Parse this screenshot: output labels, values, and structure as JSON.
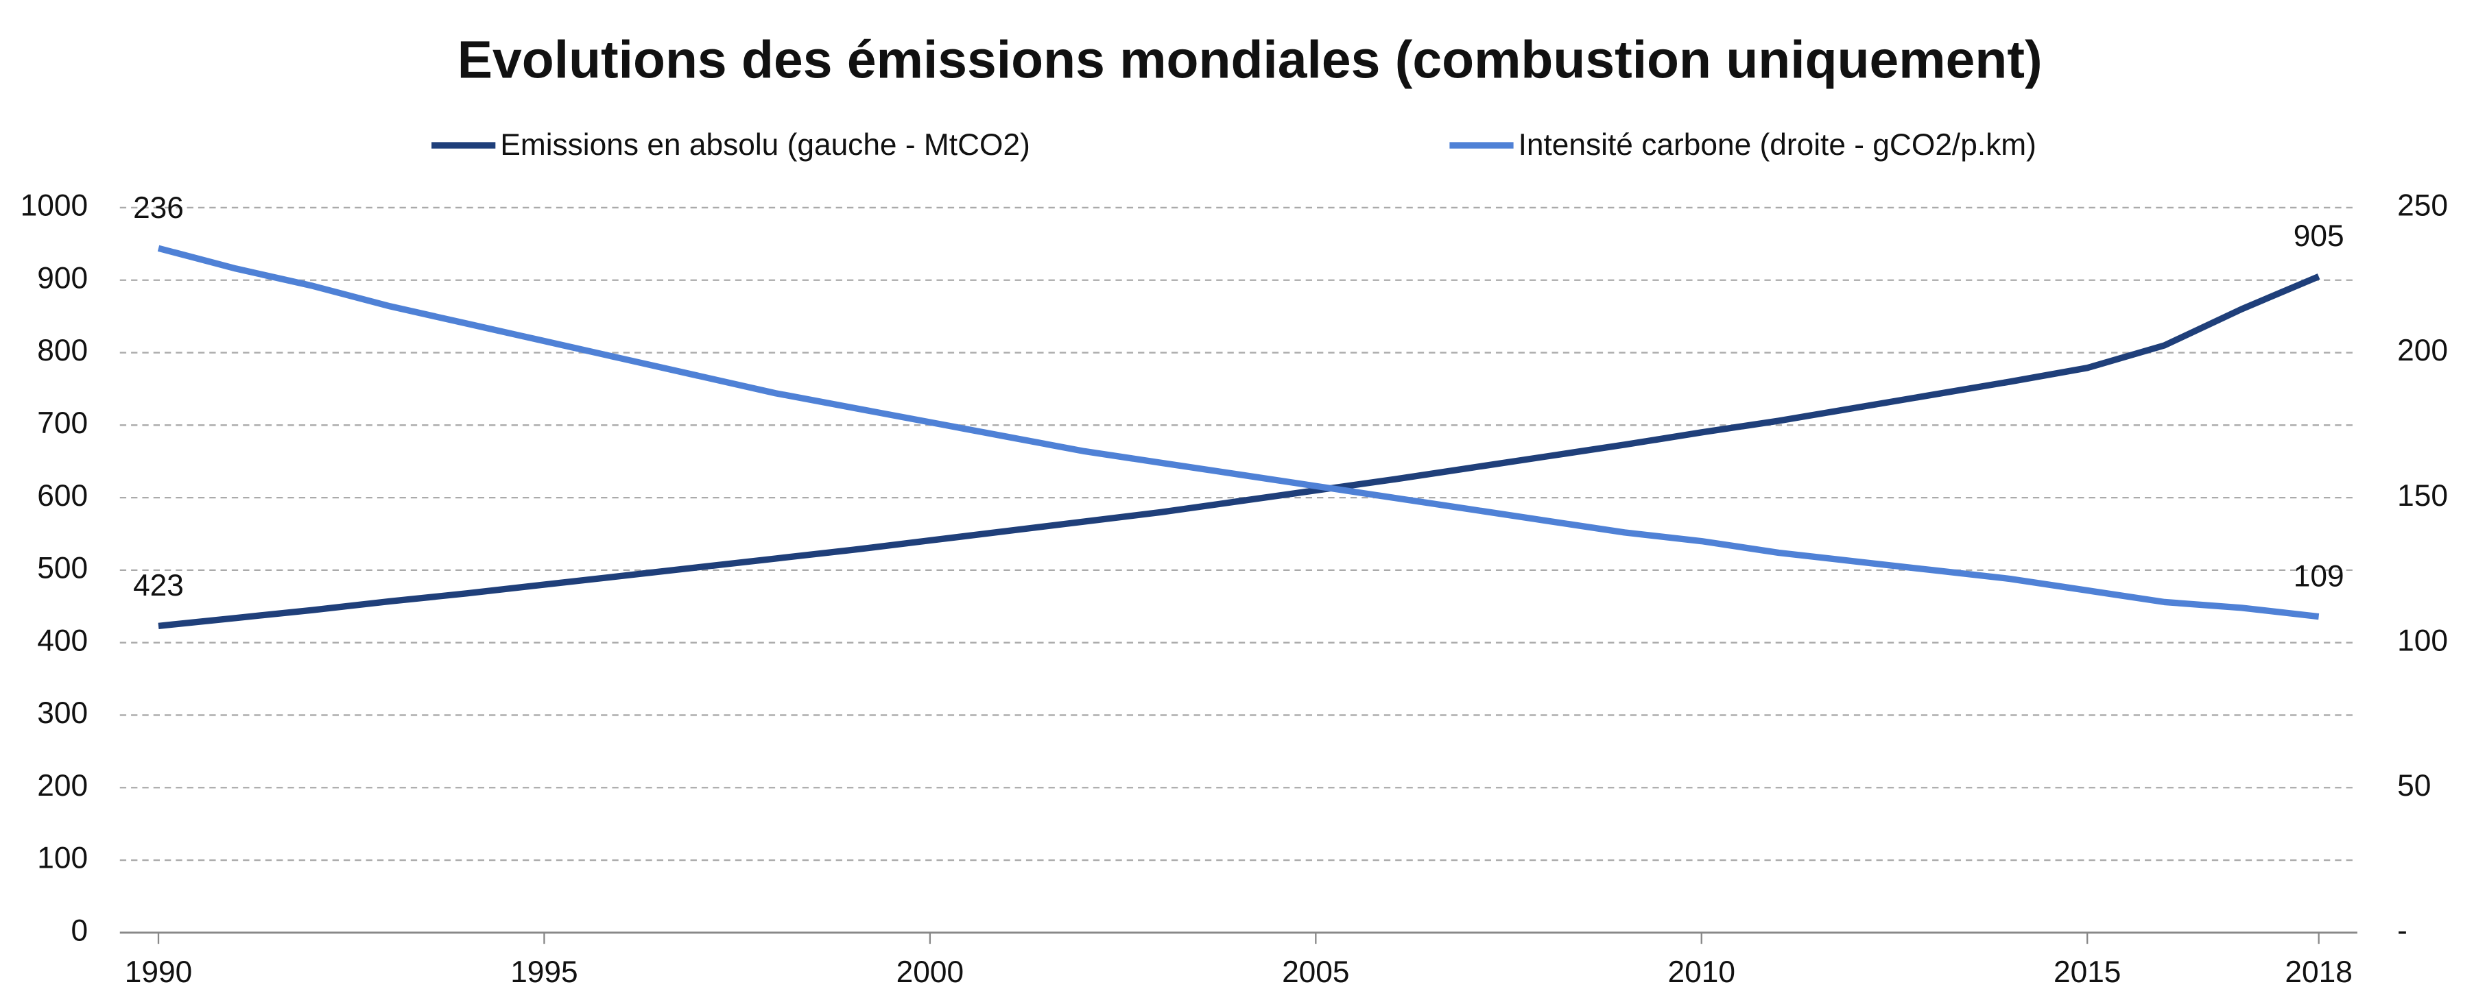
{
  "chart_data": {
    "type": "line",
    "title": "Evolutions des émissions mondiales (combustion uniquement)",
    "x": [
      1990,
      1991,
      1992,
      1993,
      1994,
      1995,
      1996,
      1997,
      1998,
      1999,
      2000,
      2001,
      2002,
      2003,
      2004,
      2005,
      2006,
      2007,
      2008,
      2009,
      2010,
      2011,
      2012,
      2013,
      2014,
      2015,
      2016,
      2017,
      2018
    ],
    "xlim": [
      1989.5,
      2018.5
    ],
    "xticks": [
      1990,
      1995,
      2000,
      2005,
      2010,
      2015,
      2018
    ],
    "ylim": [
      0,
      1000
    ],
    "yticks": [
      0,
      100,
      200,
      300,
      400,
      500,
      600,
      700,
      800,
      900,
      1000
    ],
    "y2lim": [
      0,
      250
    ],
    "y2ticks": [
      {
        "value": 0,
        "label": "-"
      },
      50,
      100,
      150,
      200,
      250
    ],
    "grid": true,
    "legend": "top",
    "series": [
      {
        "name": "Emissions en absolu (gauche - MtCO2)",
        "color": "#1f3f7a",
        "values": [
          423,
          434,
          445,
          457,
          468,
          480,
          492,
          504,
          516,
          528,
          541,
          554,
          567,
          580,
          595,
          610,
          625,
          641,
          657,
          673,
          690,
          706,
          724,
          742,
          760,
          779,
          810,
          860,
          905
        ]
      },
      {
        "name": "Intensité carbone (droite - gCO2/p.km)",
        "color": "#4f81d6",
        "axis": "y2",
        "values": [
          236,
          229,
          223,
          216,
          210,
          204,
          198,
          192,
          186,
          181,
          176,
          171,
          166,
          162,
          158,
          154,
          150,
          146,
          142,
          138,
          135,
          131,
          128,
          125,
          122,
          118,
          114,
          112,
          109
        ]
      }
    ]
  }
}
